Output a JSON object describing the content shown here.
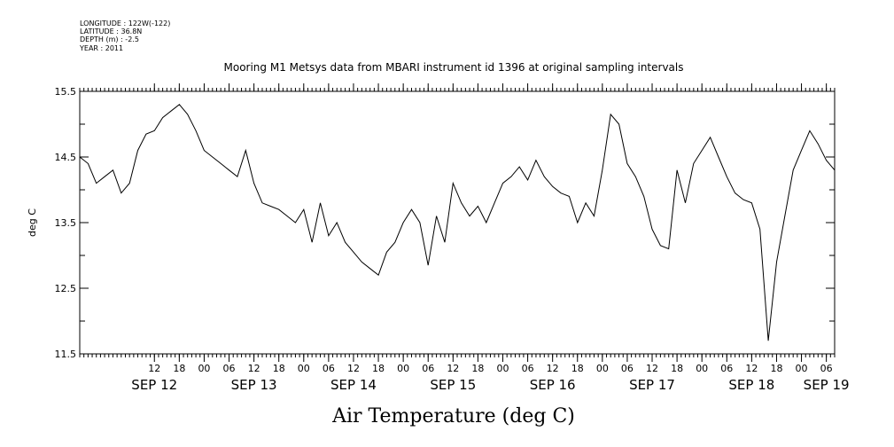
{
  "header": {
    "lines": [
      "LONGITUDE : 122W(-122)",
      "LATITUDE : 36.8N",
      "DEPTH (m) : -2.5",
      "YEAR : 2011"
    ]
  },
  "chart_data": {
    "type": "line",
    "title": "Mooring M1 Metsys data from MBARI instrument id 1396 at original sampling intervals",
    "xlabel": "Air Temperature (deg C)",
    "ylabel": "deg C",
    "xlim": [
      "2011-09-11T18:00",
      "2011-09-19T08:00"
    ],
    "ylim": [
      11.5,
      15.5
    ],
    "y_ticks": [
      11.5,
      12.5,
      13.5,
      14.5,
      15.5
    ],
    "y_tick_labels": [
      "11.5",
      "12.5",
      "13.5",
      "14.5",
      "15.5"
    ],
    "hour_ticks": [
      {
        "t": "2011-09-12T12:00",
        "label": "12"
      },
      {
        "t": "2011-09-12T18:00",
        "label": "18"
      },
      {
        "t": "2011-09-13T00:00",
        "label": "00"
      },
      {
        "t": "2011-09-13T06:00",
        "label": "06"
      },
      {
        "t": "2011-09-13T12:00",
        "label": "12"
      },
      {
        "t": "2011-09-13T18:00",
        "label": "18"
      },
      {
        "t": "2011-09-14T00:00",
        "label": "00"
      },
      {
        "t": "2011-09-14T06:00",
        "label": "06"
      },
      {
        "t": "2011-09-14T12:00",
        "label": "12"
      },
      {
        "t": "2011-09-14T18:00",
        "label": "18"
      },
      {
        "t": "2011-09-15T00:00",
        "label": "00"
      },
      {
        "t": "2011-09-15T06:00",
        "label": "06"
      },
      {
        "t": "2011-09-15T12:00",
        "label": "12"
      },
      {
        "t": "2011-09-15T18:00",
        "label": "18"
      },
      {
        "t": "2011-09-16T00:00",
        "label": "00"
      },
      {
        "t": "2011-09-16T06:00",
        "label": "06"
      },
      {
        "t": "2011-09-16T12:00",
        "label": "12"
      },
      {
        "t": "2011-09-16T18:00",
        "label": "18"
      },
      {
        "t": "2011-09-17T00:00",
        "label": "00"
      },
      {
        "t": "2011-09-17T06:00",
        "label": "06"
      },
      {
        "t": "2011-09-17T12:00",
        "label": "12"
      },
      {
        "t": "2011-09-17T18:00",
        "label": "18"
      },
      {
        "t": "2011-09-18T00:00",
        "label": "00"
      },
      {
        "t": "2011-09-18T06:00",
        "label": "06"
      },
      {
        "t": "2011-09-18T12:00",
        "label": "12"
      },
      {
        "t": "2011-09-18T18:00",
        "label": "18"
      },
      {
        "t": "2011-09-19T00:00",
        "label": "00"
      },
      {
        "t": "2011-09-19T06:00",
        "label": "06"
      }
    ],
    "date_labels": [
      {
        "t": "2011-09-12T12:00",
        "label": "SEP 12"
      },
      {
        "t": "2011-09-13T12:00",
        "label": "SEP 13"
      },
      {
        "t": "2011-09-14T12:00",
        "label": "SEP 14"
      },
      {
        "t": "2011-09-15T12:00",
        "label": "SEP 15"
      },
      {
        "t": "2011-09-16T12:00",
        "label": "SEP 16"
      },
      {
        "t": "2011-09-17T12:00",
        "label": "SEP 17"
      },
      {
        "t": "2011-09-18T12:00",
        "label": "SEP 18"
      },
      {
        "t": "2011-09-19T06:00",
        "label": "SEP 19"
      }
    ],
    "series": [
      {
        "x": [
          "2011-09-11T18:00",
          "2011-09-11T20:00",
          "2011-09-11T22:00",
          "2011-09-12T00:00",
          "2011-09-12T02:00",
          "2011-09-12T04:00",
          "2011-09-12T06:00",
          "2011-09-12T08:00",
          "2011-09-12T10:00",
          "2011-09-12T12:00",
          "2011-09-12T14:00",
          "2011-09-12T16:00",
          "2011-09-12T18:00",
          "2011-09-12T20:00",
          "2011-09-12T22:00",
          "2011-09-13T00:00",
          "2011-09-13T02:00",
          "2011-09-13T04:00",
          "2011-09-13T06:00",
          "2011-09-13T08:00",
          "2011-09-13T10:00",
          "2011-09-13T12:00",
          "2011-09-13T14:00",
          "2011-09-13T16:00",
          "2011-09-13T18:00",
          "2011-09-13T20:00",
          "2011-09-13T22:00",
          "2011-09-14T00:00",
          "2011-09-14T02:00",
          "2011-09-14T04:00",
          "2011-09-14T06:00",
          "2011-09-14T08:00",
          "2011-09-14T10:00",
          "2011-09-14T12:00",
          "2011-09-14T14:00",
          "2011-09-14T16:00",
          "2011-09-14T18:00",
          "2011-09-14T20:00",
          "2011-09-14T22:00",
          "2011-09-15T00:00",
          "2011-09-15T02:00",
          "2011-09-15T04:00",
          "2011-09-15T06:00",
          "2011-09-15T08:00",
          "2011-09-15T10:00",
          "2011-09-15T12:00",
          "2011-09-15T14:00",
          "2011-09-15T16:00",
          "2011-09-15T18:00",
          "2011-09-15T20:00",
          "2011-09-15T22:00",
          "2011-09-16T00:00",
          "2011-09-16T02:00",
          "2011-09-16T04:00",
          "2011-09-16T06:00",
          "2011-09-16T08:00",
          "2011-09-16T10:00",
          "2011-09-16T12:00",
          "2011-09-16T14:00",
          "2011-09-16T16:00",
          "2011-09-16T18:00",
          "2011-09-16T20:00",
          "2011-09-16T22:00",
          "2011-09-17T00:00",
          "2011-09-17T02:00",
          "2011-09-17T04:00",
          "2011-09-17T06:00",
          "2011-09-17T08:00",
          "2011-09-17T10:00",
          "2011-09-17T12:00",
          "2011-09-17T14:00",
          "2011-09-17T16:00",
          "2011-09-17T18:00",
          "2011-09-17T20:00",
          "2011-09-17T22:00",
          "2011-09-18T00:00",
          "2011-09-18T02:00",
          "2011-09-18T04:00",
          "2011-09-18T06:00",
          "2011-09-18T08:00",
          "2011-09-18T10:00",
          "2011-09-18T12:00",
          "2011-09-18T14:00",
          "2011-09-18T16:00",
          "2011-09-18T18:00",
          "2011-09-18T20:00",
          "2011-09-18T22:00",
          "2011-09-19T00:00",
          "2011-09-19T02:00",
          "2011-09-19T04:00",
          "2011-09-19T06:00",
          "2011-09-19T08:00"
        ],
        "y": [
          14.5,
          14.4,
          14.1,
          14.2,
          14.3,
          13.95,
          14.1,
          14.6,
          14.85,
          14.9,
          15.1,
          15.2,
          15.3,
          15.15,
          14.9,
          14.6,
          14.5,
          14.4,
          14.3,
          14.2,
          14.6,
          14.1,
          13.8,
          13.75,
          13.7,
          13.6,
          13.5,
          13.7,
          13.2,
          13.8,
          13.3,
          13.5,
          13.2,
          13.05,
          12.9,
          12.8,
          12.7,
          13.05,
          13.2,
          13.5,
          13.7,
          13.5,
          12.85,
          13.6,
          13.2,
          14.1,
          13.8,
          13.6,
          13.75,
          13.5,
          13.8,
          14.1,
          14.2,
          14.35,
          14.15,
          14.45,
          14.2,
          14.05,
          13.95,
          13.9,
          13.5,
          13.8,
          13.6,
          14.3,
          15.15,
          15.0,
          14.4,
          14.2,
          13.9,
          13.4,
          13.15,
          13.1,
          14.3,
          13.8,
          14.4,
          14.6,
          14.8,
          14.5,
          14.2,
          13.95,
          13.85,
          13.8,
          13.4,
          11.7,
          12.9,
          13.6,
          14.3,
          14.6,
          14.9,
          14.7,
          14.45,
          14.3
        ]
      }
    ]
  }
}
